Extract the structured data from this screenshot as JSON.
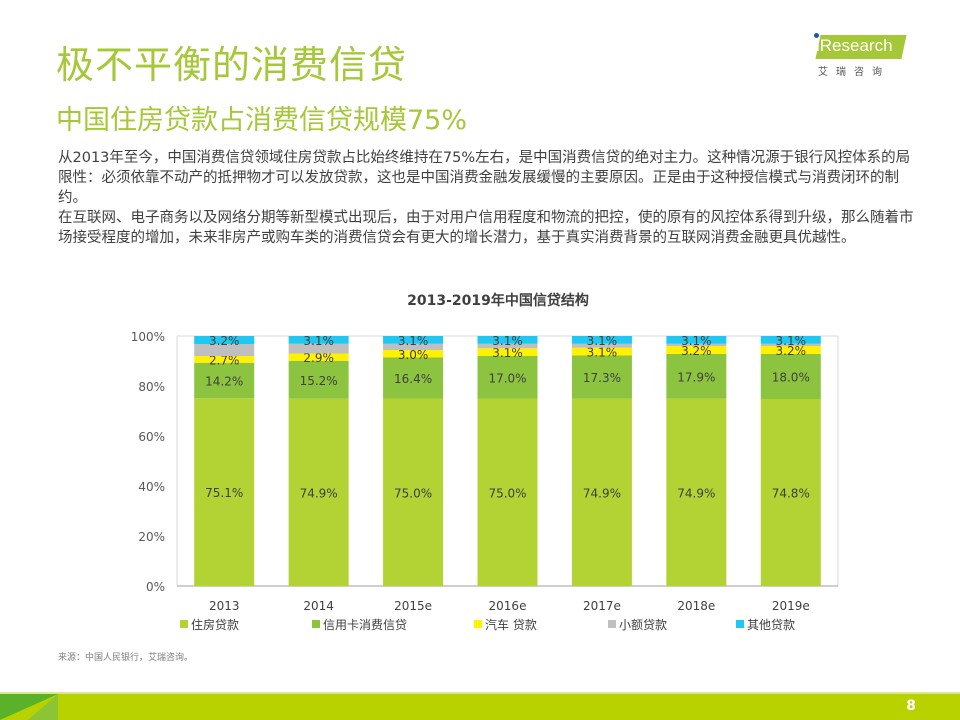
{
  "header": {
    "title": "极不平衡的消费信贷",
    "subtitle": "中国住房贷款占消费信贷规模75%"
  },
  "logo": {
    "brand": "iResearch",
    "brand_cn": "艾瑞咨询"
  },
  "body": {
    "paragraphs": [
      "从2013年至今，中国消费信贷领域住房贷款占比始终维持在75%左右，是中国消费信贷的绝对主力。这种情况源于银行风控体系的局限性：必须依靠不动产的抵押物才可以发放贷款，这也是中国消费金融发展缓慢的主要原因。正是由于这种授信模式与消费闭环的制约。",
      "在互联网、电子商务以及网络分期等新型模式出现后，由于对用户信用程度和物流的把控，使的原有的风控体系得到升级，那么随着市场接受程度的增加，未来非房产或购车类的消费信贷会有更大的增长潜力，基于真实消费背景的互联网消费金融更具优越性。"
    ]
  },
  "chart_data": {
    "type": "bar",
    "stacked": true,
    "title": "2013-2019年中国信贷结构",
    "xlabel": "",
    "ylabel": "",
    "ylim": [
      0,
      100
    ],
    "y_ticks": [
      "0%",
      "20%",
      "40%",
      "60%",
      "80%",
      "100%"
    ],
    "y_tick_values": [
      0,
      20,
      40,
      60,
      80,
      100
    ],
    "grid": false,
    "legend_position": "bottom",
    "categories": [
      "2013",
      "2014",
      "2015e",
      "2016e",
      "2017e",
      "2018e",
      "2019e"
    ],
    "series": [
      {
        "name": "住房贷款",
        "color": "#b3d234",
        "values": [
          75.1,
          74.9,
          75.0,
          75.0,
          74.9,
          74.9,
          74.8
        ],
        "labels": [
          "75.1%",
          "74.9%",
          "75.0%",
          "75.0%",
          "74.9%",
          "74.9%",
          "74.8%"
        ]
      },
      {
        "name": "信用卡消费信贷",
        "color": "#8dc43f",
        "values": [
          14.2,
          15.2,
          16.4,
          17.0,
          17.3,
          17.9,
          18.0
        ],
        "labels": [
          "14.2%",
          "15.2%",
          "16.4%",
          "17.0%",
          "17.3%",
          "17.9%",
          "18.0%"
        ]
      },
      {
        "name": "汽车 贷款",
        "color": "#fff200",
        "values": [
          2.7,
          2.9,
          3.0,
          3.1,
          3.1,
          3.2,
          3.2
        ],
        "labels": [
          "2.7%",
          "2.9%",
          "3.0%",
          "3.1%",
          "3.1%",
          "3.2%",
          "3.2%"
        ]
      },
      {
        "name": "小额贷款",
        "color": "#bfbfbf",
        "values": [
          4.8,
          3.9,
          2.5,
          1.8,
          1.6,
          0.9,
          0.9
        ],
        "labels": [
          null,
          null,
          null,
          null,
          null,
          null,
          null
        ]
      },
      {
        "name": "其他贷款",
        "color": "#1ec8f0",
        "values": [
          3.2,
          3.1,
          3.1,
          3.1,
          3.1,
          3.1,
          3.1
        ],
        "labels": [
          "3.2%",
          "3.1%",
          "3.1%",
          "3.1%",
          "3.1%",
          "3.1%",
          "3.1%"
        ]
      }
    ]
  },
  "source": "来源：中国人民银行，艾瑞咨询。",
  "footer": {
    "page_number": "8"
  }
}
